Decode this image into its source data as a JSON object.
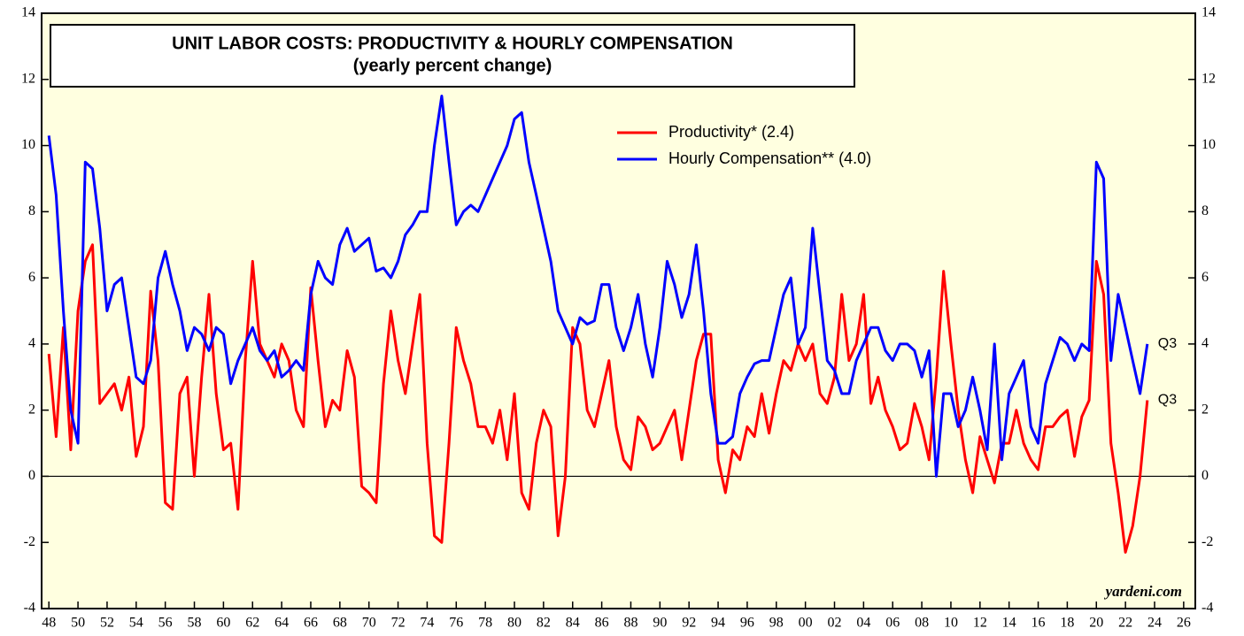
{
  "chart_data": {
    "type": "line",
    "title": "UNIT LABOR COSTS: PRODUCTIVITY & HOURLY COMPENSATION",
    "subtitle": "(yearly percent change)",
    "annotations": [
      "Q3",
      "Q3",
      "yardeni.com"
    ],
    "legend": "upper center",
    "x": [
      1948,
      1948.5,
      1949,
      1949.5,
      1950,
      1950.5,
      1951,
      1951.5,
      1952,
      1952.5,
      1953,
      1953.5,
      1954,
      1954.5,
      1955,
      1955.5,
      1956,
      1956.5,
      1957,
      1957.5,
      1958,
      1958.5,
      1959,
      1959.5,
      1960,
      1960.5,
      1961,
      1961.5,
      1962,
      1962.5,
      1963,
      1963.5,
      1964,
      1964.5,
      1965,
      1965.5,
      1966,
      1966.5,
      1967,
      1967.5,
      1968,
      1968.5,
      1969,
      1969.5,
      1970,
      1970.5,
      1971,
      1971.5,
      1972,
      1972.5,
      1973,
      1973.5,
      1974,
      1974.5,
      1975,
      1975.5,
      1976,
      1976.5,
      1977,
      1977.5,
      1978,
      1978.5,
      1979,
      1979.5,
      1980,
      1980.5,
      1981,
      1981.5,
      1982,
      1982.5,
      1983,
      1983.5,
      1984,
      1984.5,
      1985,
      1985.5,
      1986,
      1986.5,
      1987,
      1987.5,
      1988,
      1988.5,
      1989,
      1989.5,
      1990,
      1990.5,
      1991,
      1991.5,
      1992,
      1992.5,
      1993,
      1993.5,
      1994,
      1994.5,
      1995,
      1995.5,
      1996,
      1996.5,
      1997,
      1997.5,
      1998,
      1998.5,
      1999,
      1999.5,
      2000,
      2000.5,
      2001,
      2001.5,
      2002,
      2002.5,
      2003,
      2003.5,
      2004,
      2004.5,
      2005,
      2005.5,
      2006,
      2006.5,
      2007,
      2007.5,
      2008,
      2008.5,
      2009,
      2009.5,
      2010,
      2010.5,
      2011,
      2011.5,
      2012,
      2012.5,
      2013,
      2013.5,
      2014,
      2014.5,
      2015,
      2015.5,
      2016,
      2016.5,
      2017,
      2017.5,
      2018,
      2018.5,
      2019,
      2019.5,
      2020,
      2020.5,
      2021,
      2021.5,
      2022,
      2022.5,
      2023,
      2023.5
    ],
    "series": [
      {
        "name": "Productivity* (2.4)",
        "color": "#ff0000",
        "values": [
          3.7,
          1.2,
          4.5,
          0.8,
          5,
          6.5,
          7,
          2.2,
          2.5,
          2.8,
          2,
          3,
          0.6,
          1.5,
          5.6,
          3.5,
          -0.8,
          -1,
          2.5,
          3,
          0,
          3,
          5.5,
          2.5,
          0.8,
          1,
          -1,
          3.5,
          6.5,
          4,
          3.5,
          3,
          4,
          3.5,
          2,
          1.5,
          5.7,
          3.5,
          1.5,
          2.3,
          2,
          3.8,
          3,
          -0.3,
          -0.5,
          -0.8,
          2.8,
          5,
          3.5,
          2.5,
          4,
          5.5,
          1,
          -1.8,
          -2,
          1,
          4.5,
          3.5,
          2.8,
          1.5,
          1.5,
          1,
          2,
          0.5,
          2.5,
          -0.5,
          -1,
          1,
          2,
          1.5,
          -1.8,
          0,
          4.5,
          4,
          2,
          1.5,
          2.5,
          3.5,
          1.5,
          0.5,
          0.2,
          1.8,
          1.5,
          0.8,
          1,
          1.5,
          2,
          0.5,
          2,
          3.5,
          4.3,
          4.3,
          0.5,
          -0.5,
          0.8,
          0.5,
          1.5,
          1.2,
          2.5,
          1.3,
          2.5,
          3.5,
          3.2,
          4,
          3.5,
          4,
          2.5,
          2.2,
          3,
          5.5,
          3.5,
          4,
          5.5,
          2.2,
          3,
          2,
          1.5,
          0.8,
          1,
          2.2,
          1.5,
          0.5,
          3,
          6.2,
          4,
          2,
          0.5,
          -0.5,
          1.2,
          0.5,
          -0.2,
          1,
          1,
          2,
          1,
          0.5,
          0.2,
          1.5,
          1.5,
          1.8,
          2,
          0.6,
          1.8,
          2.3,
          6.5,
          5.5,
          1,
          -0.5,
          -2.3,
          -1.5,
          0,
          2.3
        ]
      },
      {
        "name": "Hourly Compensation** (4.0)",
        "color": "#0000ff",
        "values": [
          10.3,
          8.5,
          5,
          2,
          1,
          9.5,
          9.3,
          7.5,
          5,
          5.8,
          6,
          4.5,
          3,
          2.8,
          3.5,
          6,
          6.8,
          5.8,
          5,
          3.8,
          4.5,
          4.3,
          3.8,
          4.5,
          4.3,
          2.8,
          3.5,
          4,
          4.5,
          3.8,
          3.5,
          3.8,
          3,
          3.2,
          3.5,
          3.2,
          5.5,
          6.5,
          6,
          5.8,
          7,
          7.5,
          6.8,
          7,
          7.2,
          6.2,
          6.3,
          6,
          6.5,
          7.3,
          7.6,
          8,
          8,
          10,
          11.5,
          9.5,
          7.6,
          8,
          8.2,
          8,
          8.5,
          9,
          9.5,
          10,
          10.8,
          11,
          9.5,
          8.5,
          7.5,
          6.5,
          5,
          4.5,
          4,
          4.8,
          4.6,
          4.7,
          5.8,
          5.8,
          4.5,
          3.8,
          4.5,
          5.5,
          4,
          3,
          4.5,
          6.5,
          5.8,
          4.8,
          5.5,
          7,
          5,
          2.5,
          1,
          1,
          1.2,
          2.5,
          3,
          3.4,
          3.5,
          3.5,
          4.5,
          5.5,
          6,
          4,
          4.5,
          7.5,
          5.5,
          3.5,
          3.2,
          2.5,
          2.5,
          3.5,
          4,
          4.5,
          4.5,
          3.8,
          3.5,
          4,
          4,
          3.8,
          3,
          3.8,
          0,
          2.5,
          2.5,
          1.5,
          2,
          3,
          2,
          0.8,
          4,
          0.5,
          2.5,
          3,
          3.5,
          1.5,
          1,
          2.8,
          3.5,
          4.2,
          4,
          3.5,
          4,
          3.8,
          9.5,
          9,
          3.5,
          5.5,
          4.5,
          3.5,
          2.5,
          4
        ]
      }
    ],
    "xlim": [
      1947.5,
      2026.8
    ],
    "xticks": [
      {
        "value": 1948,
        "label": "48"
      },
      {
        "value": 1950,
        "label": "50"
      },
      {
        "value": 1952,
        "label": "52"
      },
      {
        "value": 1954,
        "label": "54"
      },
      {
        "value": 1956,
        "label": "56"
      },
      {
        "value": 1958,
        "label": "58"
      },
      {
        "value": 1960,
        "label": "60"
      },
      {
        "value": 1962,
        "label": "62"
      },
      {
        "value": 1964,
        "label": "64"
      },
      {
        "value": 1966,
        "label": "66"
      },
      {
        "value": 1968,
        "label": "68"
      },
      {
        "value": 1970,
        "label": "70"
      },
      {
        "value": 1972,
        "label": "72"
      },
      {
        "value": 1974,
        "label": "74"
      },
      {
        "value": 1976,
        "label": "76"
      },
      {
        "value": 1978,
        "label": "78"
      },
      {
        "value": 1980,
        "label": "80"
      },
      {
        "value": 1982,
        "label": "82"
      },
      {
        "value": 1984,
        "label": "84"
      },
      {
        "value": 1986,
        "label": "86"
      },
      {
        "value": 1988,
        "label": "88"
      },
      {
        "value": 1990,
        "label": "90"
      },
      {
        "value": 1992,
        "label": "92"
      },
      {
        "value": 1994,
        "label": "94"
      },
      {
        "value": 1996,
        "label": "96"
      },
      {
        "value": 1998,
        "label": "98"
      },
      {
        "value": 2000,
        "label": "00"
      },
      {
        "value": 2002,
        "label": "02"
      },
      {
        "value": 2004,
        "label": "04"
      },
      {
        "value": 2006,
        "label": "06"
      },
      {
        "value": 2008,
        "label": "08"
      },
      {
        "value": 2010,
        "label": "10"
      },
      {
        "value": 2012,
        "label": "12"
      },
      {
        "value": 2014,
        "label": "14"
      },
      {
        "value": 2016,
        "label": "16"
      },
      {
        "value": 2018,
        "label": "18"
      },
      {
        "value": 2020,
        "label": "20"
      },
      {
        "value": 2022,
        "label": "22"
      },
      {
        "value": 2024,
        "label": "24"
      },
      {
        "value": 2026,
        "label": "26"
      }
    ],
    "ylim": [
      -4,
      14
    ],
    "yticks": [
      -4,
      -2,
      0,
      2,
      4,
      6,
      8,
      10,
      12,
      14
    ]
  }
}
